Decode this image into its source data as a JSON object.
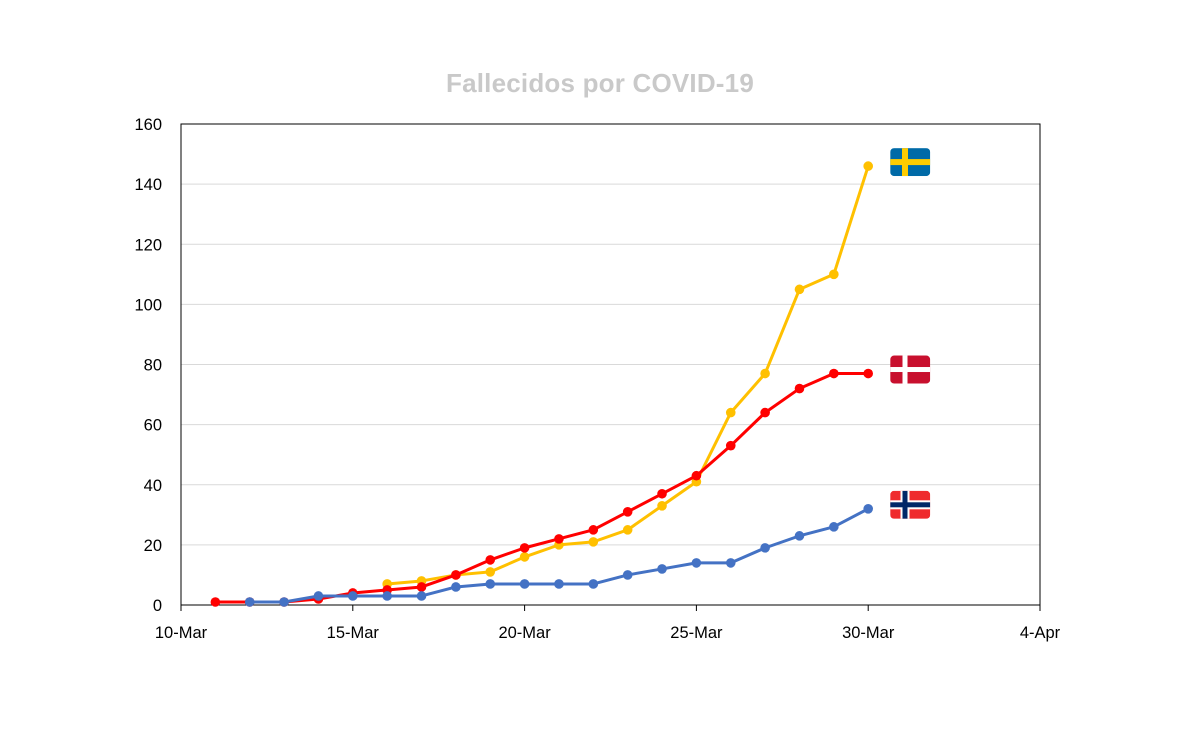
{
  "chart_data": {
    "type": "line",
    "title": "Fallecidos por COVID-19",
    "xlabel": "",
    "ylabel": "",
    "x_tick_labels": [
      "10-Mar",
      "15-Mar",
      "20-Mar",
      "25-Mar",
      "30-Mar",
      "4-Apr"
    ],
    "x_tick_dates": [
      "2020-03-10",
      "2020-03-15",
      "2020-03-20",
      "2020-03-25",
      "2020-03-30",
      "2020-04-04"
    ],
    "xlim": [
      "2020-03-10",
      "2020-04-04"
    ],
    "y_tick_labels": [
      "0",
      "20",
      "40",
      "60",
      "80",
      "100",
      "120",
      "140",
      "160"
    ],
    "ylim": [
      0,
      160
    ],
    "grid": "horizontal",
    "legend": "flag icons at the right end of each series",
    "series": [
      {
        "flag": "sweden-flag-icon",
        "color": "#ffc000",
        "points": [
          [
            "2020-03-16",
            7
          ],
          [
            "2020-03-17",
            8
          ],
          [
            "2020-03-18",
            10
          ],
          [
            "2020-03-19",
            11
          ],
          [
            "2020-03-20",
            16
          ],
          [
            "2020-03-21",
            20
          ],
          [
            "2020-03-22",
            21
          ],
          [
            "2020-03-23",
            25
          ],
          [
            "2020-03-24",
            33
          ],
          [
            "2020-03-25",
            41
          ],
          [
            "2020-03-26",
            64
          ],
          [
            "2020-03-27",
            77
          ],
          [
            "2020-03-28",
            105
          ],
          [
            "2020-03-29",
            110
          ],
          [
            "2020-03-30",
            146
          ]
        ]
      },
      {
        "flag": "denmark-flag-icon",
        "color": "#ff0000",
        "points": [
          [
            "2020-03-11",
            1
          ],
          [
            "2020-03-12",
            1
          ],
          [
            "2020-03-13",
            1
          ],
          [
            "2020-03-14",
            2
          ],
          [
            "2020-03-15",
            4
          ],
          [
            "2020-03-16",
            5
          ],
          [
            "2020-03-17",
            6
          ],
          [
            "2020-03-18",
            10
          ],
          [
            "2020-03-19",
            15
          ],
          [
            "2020-03-20",
            19
          ],
          [
            "2020-03-21",
            22
          ],
          [
            "2020-03-22",
            25
          ],
          [
            "2020-03-23",
            31
          ],
          [
            "2020-03-24",
            37
          ],
          [
            "2020-03-25",
            43
          ],
          [
            "2020-03-26",
            53
          ],
          [
            "2020-03-27",
            64
          ],
          [
            "2020-03-28",
            72
          ],
          [
            "2020-03-29",
            77
          ],
          [
            "2020-03-30",
            77
          ]
        ]
      },
      {
        "flag": "norway-flag-icon",
        "color": "#4472c4",
        "points": [
          [
            "2020-03-12",
            1
          ],
          [
            "2020-03-13",
            1
          ],
          [
            "2020-03-14",
            3
          ],
          [
            "2020-03-15",
            3
          ],
          [
            "2020-03-16",
            3
          ],
          [
            "2020-03-17",
            3
          ],
          [
            "2020-03-18",
            6
          ],
          [
            "2020-03-19",
            7
          ],
          [
            "2020-03-20",
            7
          ],
          [
            "2020-03-21",
            7
          ],
          [
            "2020-03-22",
            7
          ],
          [
            "2020-03-23",
            10
          ],
          [
            "2020-03-24",
            12
          ],
          [
            "2020-03-25",
            14
          ],
          [
            "2020-03-26",
            14
          ],
          [
            "2020-03-27",
            19
          ],
          [
            "2020-03-28",
            23
          ],
          [
            "2020-03-29",
            26
          ],
          [
            "2020-03-30",
            32
          ]
        ]
      }
    ]
  }
}
